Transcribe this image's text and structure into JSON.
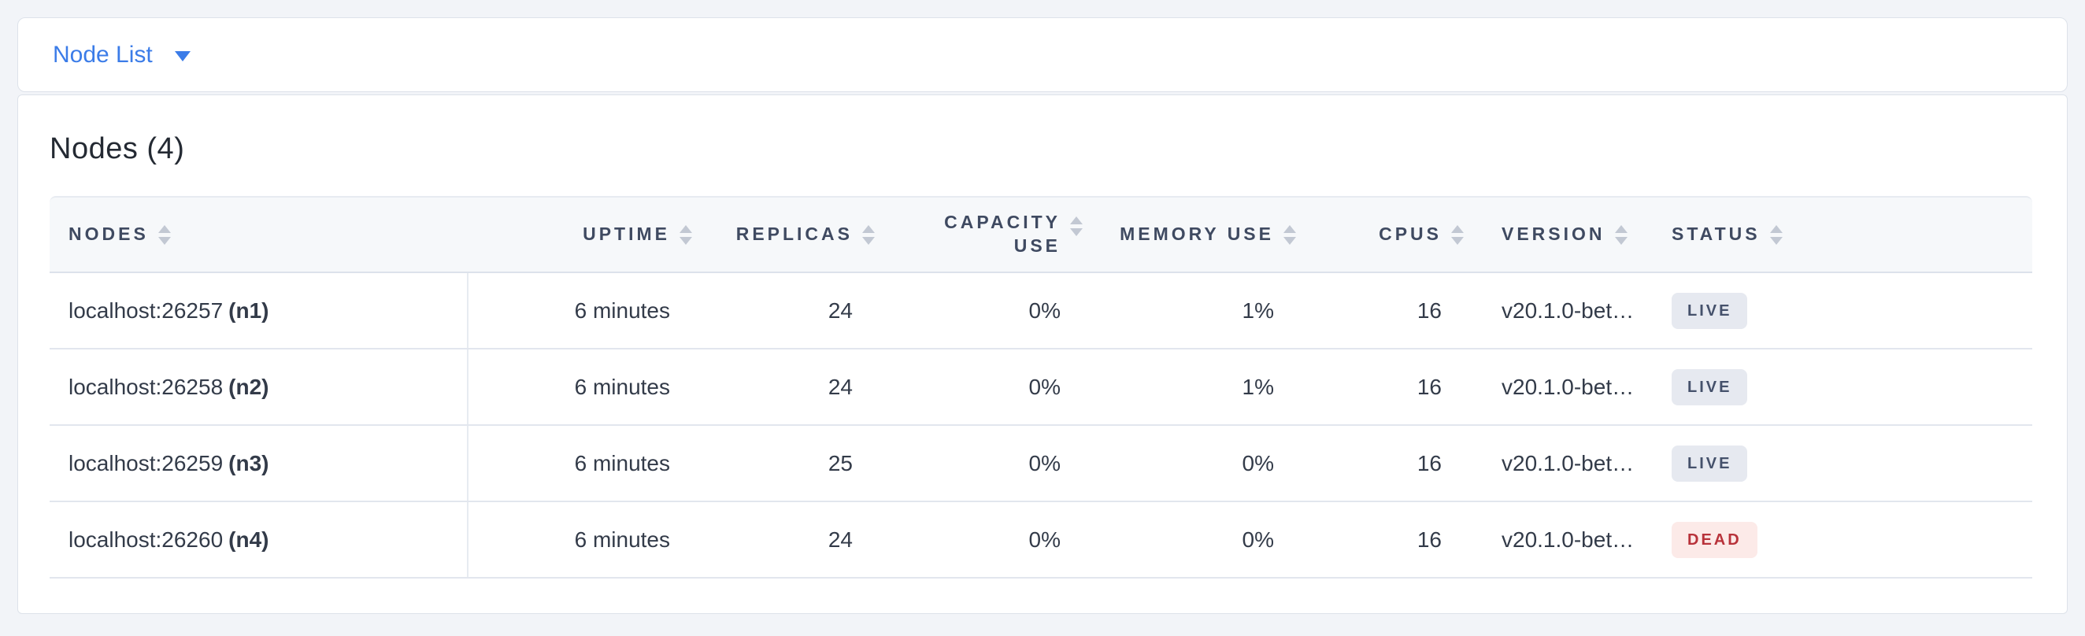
{
  "topbar": {
    "dropdown_label": "Node List"
  },
  "page": {
    "title": "Nodes (4)"
  },
  "table": {
    "columns": [
      {
        "key": "nodes",
        "label": "NODES",
        "align": "left"
      },
      {
        "key": "uptime",
        "label": "UPTIME",
        "align": "right"
      },
      {
        "key": "replicas",
        "label": "REPLICAS",
        "align": "right"
      },
      {
        "key": "capacity",
        "label": "CAPACITY USE",
        "align": "right"
      },
      {
        "key": "memory",
        "label": "MEMORY USE",
        "align": "right"
      },
      {
        "key": "cpus",
        "label": "CPUS",
        "align": "right"
      },
      {
        "key": "version",
        "label": "VERSION",
        "align": "left"
      },
      {
        "key": "status",
        "label": "STATUS",
        "align": "left"
      }
    ],
    "rows": [
      {
        "address": "localhost:26257",
        "id": "(n1)",
        "uptime": "6 minutes",
        "replicas": "24",
        "capacity": "0%",
        "memory": "1%",
        "cpus": "16",
        "version": "v20.1.0-bet…",
        "status": "LIVE"
      },
      {
        "address": "localhost:26258",
        "id": "(n2)",
        "uptime": "6 minutes",
        "replicas": "24",
        "capacity": "0%",
        "memory": "1%",
        "cpus": "16",
        "version": "v20.1.0-bet…",
        "status": "LIVE"
      },
      {
        "address": "localhost:26259",
        "id": "(n3)",
        "uptime": "6 minutes",
        "replicas": "25",
        "capacity": "0%",
        "memory": "0%",
        "cpus": "16",
        "version": "v20.1.0-bet…",
        "status": "LIVE"
      },
      {
        "address": "localhost:26260",
        "id": "(n4)",
        "uptime": "6 minutes",
        "replicas": "24",
        "capacity": "0%",
        "memory": "0%",
        "cpus": "16",
        "version": "v20.1.0-bet…",
        "status": "DEAD"
      }
    ]
  },
  "icons": {
    "dropdown_caret": "caret-down-icon",
    "column_sort": "sort-icon"
  },
  "colors": {
    "accent": "#3b7ce8",
    "live_badge_bg": "#e6e9f0",
    "live_badge_text": "#45516b",
    "dead_badge_bg": "#fceae8",
    "dead_badge_text": "#b8323a"
  }
}
